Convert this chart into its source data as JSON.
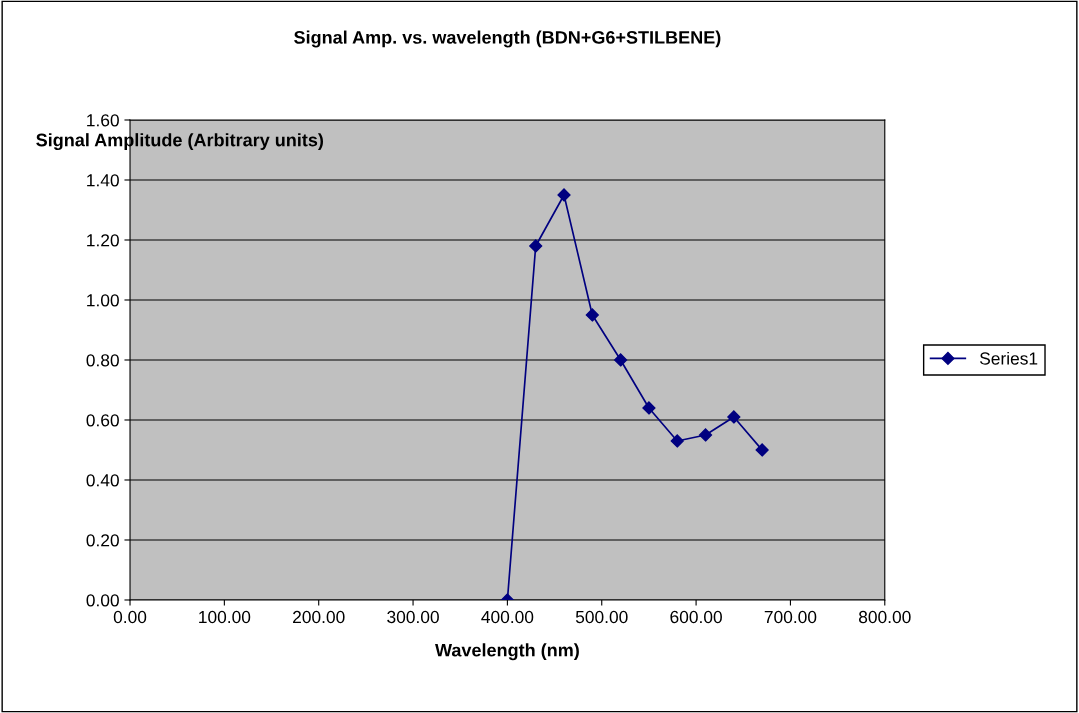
{
  "chart_data": {
    "type": "line",
    "title": "Signal Amp. vs. wavelength (BDN+G6+STILBENE)",
    "xlabel": "Wavelength (nm)",
    "ylabel": "Signal Amplitude (Arbitrary units)",
    "x": [
      400,
      430,
      460,
      490,
      520,
      550,
      580,
      610,
      640,
      670
    ],
    "series": [
      {
        "name": "Series1",
        "color": "#000080",
        "values": [
          0.0,
          1.18,
          1.35,
          0.95,
          0.8,
          0.64,
          0.53,
          0.55,
          0.61,
          0.5
        ]
      }
    ],
    "xlim": [
      0,
      800
    ],
    "xticks": [
      {
        "value": 0,
        "label": "0.00"
      },
      {
        "value": 100,
        "label": "100.00"
      },
      {
        "value": 200,
        "label": "200.00"
      },
      {
        "value": 300,
        "label": "300.00"
      },
      {
        "value": 400,
        "label": "400.00"
      },
      {
        "value": 500,
        "label": "500.00"
      },
      {
        "value": 600,
        "label": "600.00"
      },
      {
        "value": 700,
        "label": "700.00"
      },
      {
        "value": 800,
        "label": "800.00"
      }
    ],
    "ylim": [
      0,
      1.6
    ],
    "yticks": [
      {
        "value": 0,
        "label": "0.00"
      },
      {
        "value": 0.2,
        "label": "0.20"
      },
      {
        "value": 0.4,
        "label": "0.40"
      },
      {
        "value": 0.6,
        "label": "0.60"
      },
      {
        "value": 0.8,
        "label": "0.80"
      },
      {
        "value": 1.0,
        "label": "1.00"
      },
      {
        "value": 1.2,
        "label": "1.20"
      },
      {
        "value": 1.4,
        "label": "1.40"
      },
      {
        "value": 1.6,
        "label": "1.60"
      }
    ],
    "grid": "y",
    "legend": "right",
    "marker": "diamond",
    "line_style": "solid"
  }
}
